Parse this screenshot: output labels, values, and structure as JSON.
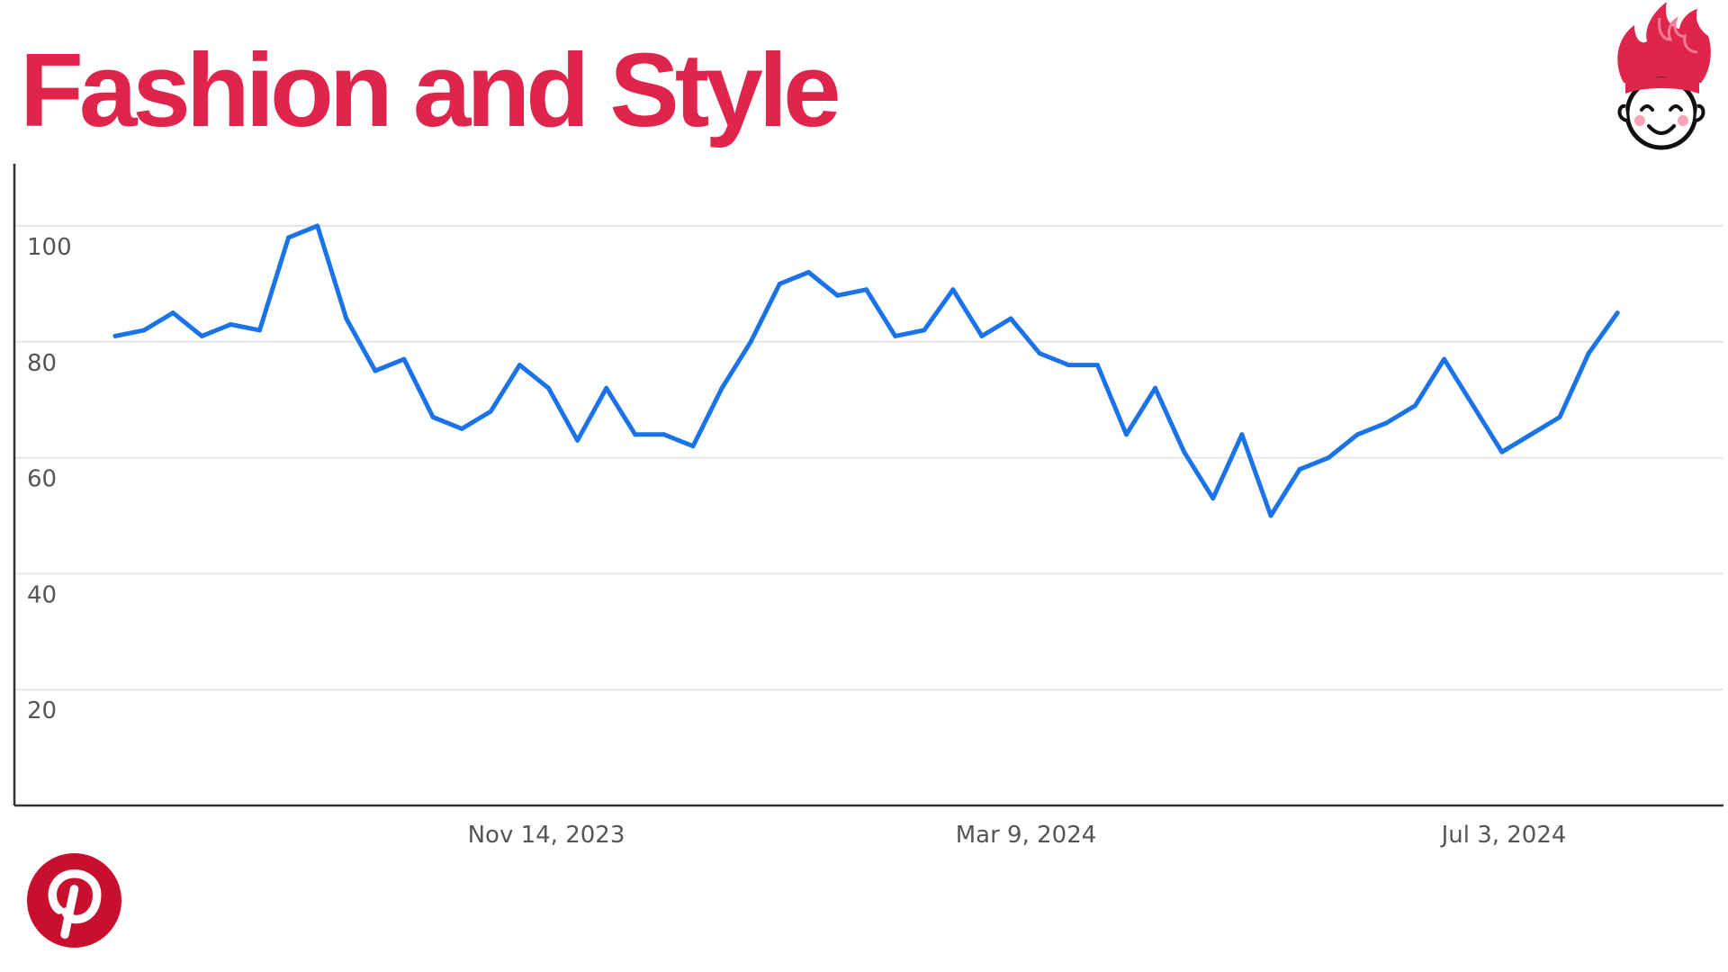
{
  "title": "Fashion and Style",
  "colors": {
    "title": "#e0254d",
    "line": "#1a73e8",
    "axis": "#333333",
    "grid": "#e6e6e6",
    "pinterest": "#c8102e"
  },
  "icons": {
    "brand_logo": "flame-hair-smiley-logo-icon",
    "pinterest": "pinterest-icon"
  },
  "chart_data": {
    "type": "line",
    "title": "Fashion and Style",
    "xlabel": "",
    "ylabel": "",
    "x_ticks": [
      "Nov 14, 2023",
      "Mar 9, 2024",
      "Jul 3, 2024"
    ],
    "y_ticks": [
      20,
      40,
      60,
      80,
      100
    ],
    "ylim": [
      0,
      111
    ],
    "grid": true,
    "legend": "none",
    "series": [
      {
        "values": [
          81,
          82,
          85,
          81,
          83,
          82,
          98,
          100,
          84,
          75,
          77,
          67,
          65,
          68,
          76,
          72,
          63,
          72,
          64,
          64,
          62,
          72,
          80,
          90,
          92,
          88,
          89,
          81,
          82,
          89,
          81,
          84,
          78,
          76,
          76,
          64,
          72,
          61,
          53,
          64,
          50,
          58,
          60,
          64,
          66,
          69,
          77,
          69,
          61,
          64,
          67,
          78,
          85
        ]
      }
    ]
  }
}
